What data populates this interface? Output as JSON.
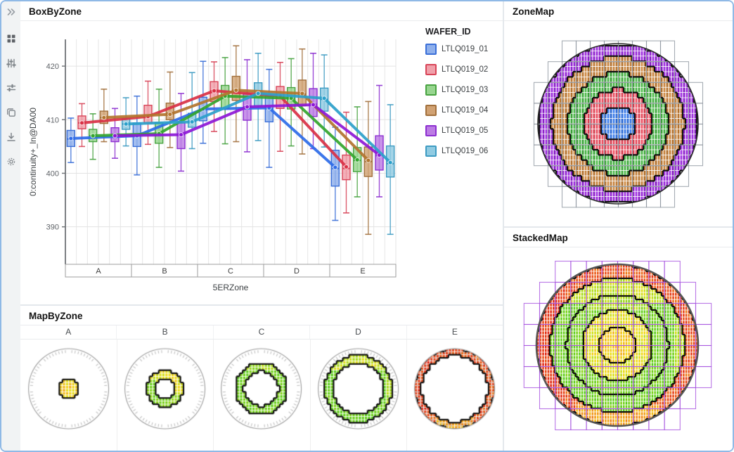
{
  "window": {
    "border_color": "#8fb9e6"
  },
  "toolbar": {
    "items": [
      {
        "name": "expand-panel",
        "icon": "double-chevron-right"
      },
      {
        "name": "dashboard-grid",
        "icon": "grid"
      },
      {
        "name": "filter-sliders",
        "icon": "sliders-vertical"
      },
      {
        "name": "tune-settings",
        "icon": "sliders-horizontal"
      },
      {
        "name": "copy-view",
        "icon": "copy"
      },
      {
        "name": "download",
        "icon": "download"
      },
      {
        "name": "settings",
        "icon": "gear"
      }
    ]
  },
  "panels": {
    "box_by_zone": {
      "title": "BoxByZone"
    },
    "zone_map": {
      "title": "ZoneMap"
    },
    "stacked_map": {
      "title": "StackedMap"
    },
    "map_by_zone": {
      "title": "MapByZone"
    }
  },
  "chart_data": [
    {
      "id": "box_by_zone",
      "type": "box",
      "title": "BoxByZone",
      "xlabel": "5ERZone",
      "ylabel": "0:continuity+_ln@DA00",
      "legend_title": "WAFER_ID",
      "legend_position": "right",
      "grid": true,
      "categories": [
        "A",
        "B",
        "C",
        "D",
        "E"
      ],
      "y_ticks": [
        390,
        400,
        410,
        420
      ],
      "ylim": [
        383,
        425
      ],
      "series": [
        {
          "name": "LTLQ019_01",
          "fill": "#8fb0ec",
          "stroke": "#3a6fd8",
          "line": "#2e6be8",
          "whiskers_box": [
            [
              402.0,
              405.0,
              406.4,
              408.0,
              410.3
            ],
            [
              399.7,
              405.0,
              407.0,
              409.4,
              414.4
            ],
            [
              405.6,
              409.8,
              411.9,
              414.2,
              420.9
            ],
            [
              401.1,
              409.6,
              412.1,
              414.5,
              419.4
            ],
            [
              391.2,
              397.6,
              400.9,
              404.3,
              408.6
            ]
          ],
          "means": [
            406.5,
            407.0,
            412.0,
            412.2,
            401.1
          ]
        },
        {
          "name": "LTLQ019_02",
          "fill": "#f0a0aa",
          "stroke": "#d84458",
          "line": "#d93145",
          "whiskers_box": [
            [
              405.0,
              408.3,
              409.4,
              410.7,
              413.0
            ],
            [
              405.4,
              409.4,
              410.7,
              412.7,
              417.2
            ],
            [
              407.8,
              413.4,
              415.4,
              417.1,
              420.8
            ],
            [
              404.1,
              412.1,
              414.3,
              416.2,
              420.7
            ],
            [
              392.6,
              398.8,
              400.9,
              403.4,
              411.4
            ]
          ],
          "means": [
            409.4,
            410.6,
            415.4,
            414.4,
            401.2
          ]
        },
        {
          "name": "LTLQ019_03",
          "fill": "#97d58f",
          "stroke": "#48a341",
          "line": "#33a52e",
          "whiskers_box": [
            [
              402.6,
              405.9,
              407.0,
              408.2,
              411.1
            ],
            [
              401.1,
              405.6,
              407.3,
              409.4,
              415.7
            ],
            [
              405.5,
              412.1,
              414.4,
              416.4,
              421.6
            ],
            [
              405.1,
              412.0,
              414.0,
              416.0,
              421.4
            ],
            [
              395.6,
              400.3,
              402.4,
              404.8,
              412.4
            ]
          ],
          "means": [
            407.0,
            407.4,
            414.4,
            414.0,
            402.5
          ]
        },
        {
          "name": "LTLQ019_04",
          "fill": "#d1a273",
          "stroke": "#a2703c",
          "line": "#b2742e",
          "whiskers_box": [
            [
              405.9,
              409.3,
              410.4,
              411.6,
              415.7
            ],
            [
              404.8,
              410.0,
              411.2,
              413.1,
              418.9
            ],
            [
              405.9,
              413.6,
              415.5,
              418.1,
              423.8
            ],
            [
              403.6,
              412.6,
              414.8,
              417.4,
              423.2
            ],
            [
              388.6,
              399.4,
              402.2,
              404.9,
              413.4
            ]
          ],
          "means": [
            410.4,
            411.0,
            415.5,
            414.9,
            402.4
          ]
        },
        {
          "name": "LTLQ019_05",
          "fill": "#bc7ce4",
          "stroke": "#8c2fd0",
          "line": "#8d17d6",
          "whiskers_box": [
            [
              402.8,
              405.9,
              407.0,
              408.5,
              412.1
            ],
            [
              400.4,
              404.6,
              407.2,
              409.4,
              414.9
            ],
            [
              404.0,
              409.9,
              412.4,
              414.9,
              421.2
            ],
            [
              404.6,
              410.6,
              412.9,
              415.8,
              422.4
            ],
            [
              395.6,
              400.6,
              403.3,
              407.0,
              416.4
            ]
          ],
          "means": [
            407.0,
            407.2,
            412.4,
            412.8,
            403.4
          ]
        },
        {
          "name": "LTLQ019_06",
          "fill": "#90cbe2",
          "stroke": "#3d9bc2",
          "line": "#2b9fca",
          "whiskers_box": [
            [
              405.1,
              408.2,
              409.2,
              410.2,
              414.1
            ],
            [
              404.6,
              408.6,
              409.7,
              411.2,
              418.8
            ],
            [
              406.1,
              412.6,
              414.8,
              416.9,
              422.4
            ],
            [
              404.9,
              411.6,
              413.8,
              415.9,
              422.1
            ],
            [
              388.6,
              399.3,
              401.8,
              405.1,
              412.8
            ]
          ],
          "means": [
            409.2,
            409.6,
            414.9,
            414.0,
            402.0
          ]
        }
      ]
    },
    {
      "id": "zone_map",
      "type": "wafer_zone_map",
      "title": "ZoneMap",
      "zone_labels": [
        "A",
        "B",
        "C",
        "D",
        "E"
      ],
      "zone_radius_fractions": [
        0.22,
        0.43,
        0.63,
        0.83,
        1.0
      ],
      "zone_colors": [
        "#3f7de6",
        "#e64f60",
        "#4cb449",
        "#c68440",
        "#9a2fd8"
      ],
      "reticle_color": "#9097a0"
    },
    {
      "id": "stacked_map",
      "type": "wafer_heat_map",
      "title": "StackedMap",
      "zone_radius_fractions": [
        0.22,
        0.43,
        0.63,
        0.83,
        1.0
      ],
      "radial_heat_profile": [
        0.6,
        0.52,
        0.26,
        0.24,
        0.87
      ],
      "heat_stops": [
        [
          0,
          "#2dc81e"
        ],
        [
          0.3,
          "#7fd31f"
        ],
        [
          0.45,
          "#c6e01e"
        ],
        [
          0.55,
          "#f2df1d"
        ],
        [
          0.66,
          "#f4b41d"
        ],
        [
          0.78,
          "#ef831d"
        ],
        [
          0.88,
          "#e94e1f"
        ],
        [
          1,
          "#e22b18"
        ]
      ],
      "reticle_color": "#a855e0"
    },
    {
      "id": "map_by_zone",
      "type": "wafer_zone_rings",
      "title": "MapByZone",
      "categories": [
        "A",
        "B",
        "C",
        "D",
        "E"
      ],
      "ring_fractions": [
        [
          0.0,
          0.26
        ],
        [
          0.24,
          0.46
        ],
        [
          0.44,
          0.64
        ],
        [
          0.62,
          0.84
        ],
        [
          0.82,
          1.0
        ]
      ],
      "ring_heat": [
        0.6,
        0.52,
        0.26,
        0.24,
        0.87
      ]
    }
  ]
}
